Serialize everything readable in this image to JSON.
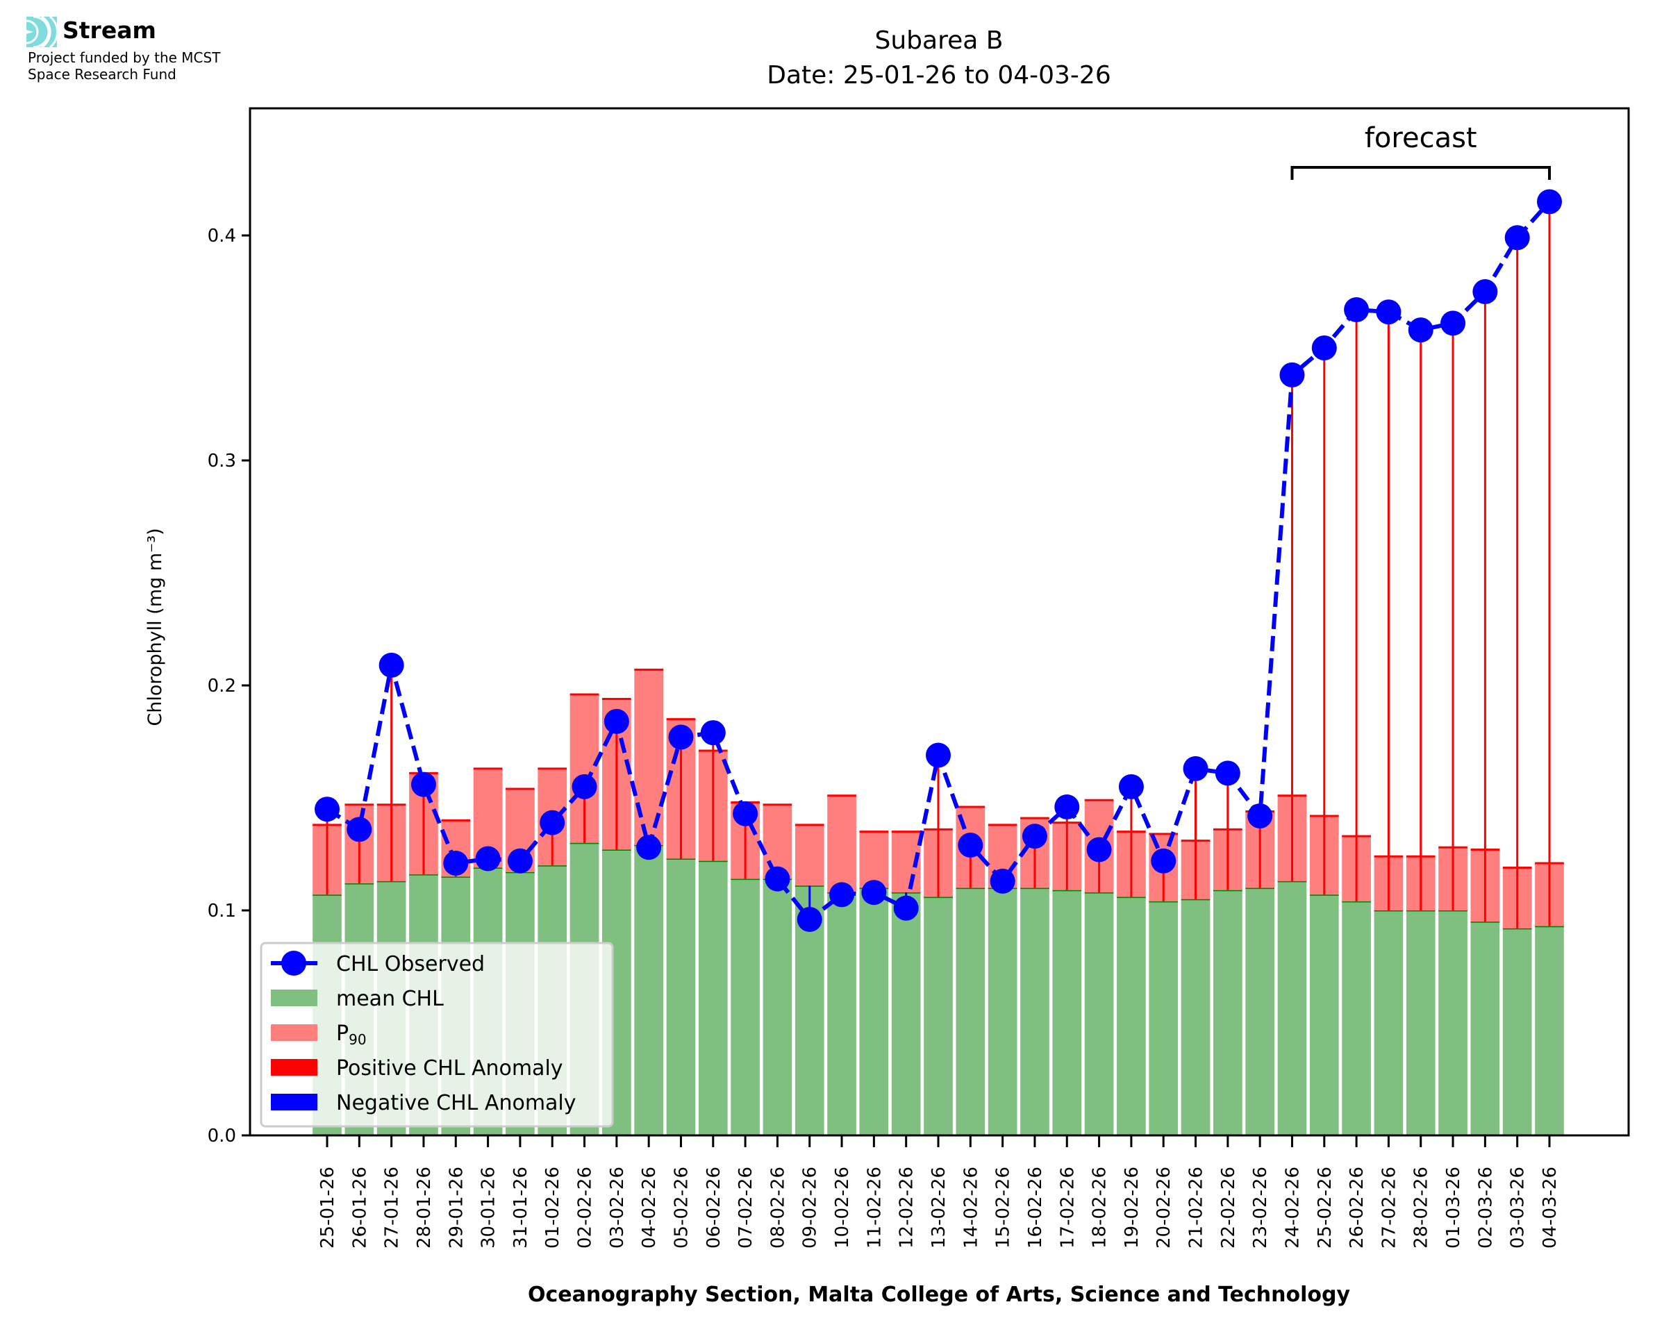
{
  "branding": {
    "name": "Stream",
    "funding_line1": "Project funded by the MCST",
    "funding_line2": "Space Research Fund",
    "logo_color": "#7fdcdc"
  },
  "chart_data": {
    "type": "bar",
    "title": "Subarea B",
    "subtitle": "Date: 25-01-26 to 04-03-26",
    "xlabel": "Oceanography Section, Malta College of Arts, Science and Technology",
    "ylabel": "Chlorophyll (mg m⁻³)",
    "ylim": [
      0,
      0.4565
    ],
    "yticks": [
      0.0,
      0.1,
      0.2,
      0.3,
      0.4
    ],
    "ytick_labels": [
      "0.0",
      "0.1",
      "0.2",
      "0.3",
      "0.4"
    ],
    "grid": false,
    "categories": [
      "25-01-26",
      "26-01-26",
      "27-01-26",
      "28-01-26",
      "29-01-26",
      "30-01-26",
      "31-01-26",
      "01-02-26",
      "02-02-26",
      "03-02-26",
      "04-02-26",
      "05-02-26",
      "06-02-26",
      "07-02-26",
      "08-02-26",
      "09-02-26",
      "10-02-26",
      "11-02-26",
      "12-02-26",
      "13-02-26",
      "14-02-26",
      "15-02-26",
      "16-02-26",
      "17-02-26",
      "18-02-26",
      "19-02-26",
      "20-02-26",
      "21-02-26",
      "22-02-26",
      "23-02-26",
      "24-02-26",
      "25-02-26",
      "26-02-26",
      "27-02-26",
      "28-02-26",
      "01-03-26",
      "02-03-26",
      "03-03-26",
      "04-03-26"
    ],
    "series": [
      {
        "name": "mean CHL",
        "kind": "bar",
        "color": "#7fbf7f",
        "edge_color": "#008000",
        "values": [
          0.107,
          0.112,
          0.113,
          0.116,
          0.115,
          0.119,
          0.117,
          0.12,
          0.13,
          0.127,
          0.129,
          0.123,
          0.122,
          0.114,
          0.114,
          0.111,
          0.108,
          0.11,
          0.108,
          0.106,
          0.11,
          0.11,
          0.11,
          0.109,
          0.108,
          0.106,
          0.104,
          0.105,
          0.109,
          0.11,
          0.113,
          0.107,
          0.104,
          0.1,
          0.1,
          0.1,
          0.095,
          0.092,
          0.093
        ]
      },
      {
        "name": "P90",
        "kind": "bar",
        "color": "#ff7f7f",
        "edge_color": "#ff0000",
        "values": [
          0.138,
          0.147,
          0.147,
          0.161,
          0.14,
          0.163,
          0.154,
          0.163,
          0.196,
          0.194,
          0.207,
          0.185,
          0.171,
          0.148,
          0.147,
          0.138,
          0.151,
          0.135,
          0.135,
          0.136,
          0.146,
          0.138,
          0.141,
          0.139,
          0.149,
          0.135,
          0.134,
          0.131,
          0.136,
          0.144,
          0.151,
          0.142,
          0.133,
          0.124,
          0.124,
          0.128,
          0.127,
          0.119,
          0.121
        ]
      },
      {
        "name": "CHL Observed",
        "kind": "line",
        "color": "#0000ff",
        "linestyle": "dashed",
        "marker": "circle",
        "values": [
          0.145,
          0.136,
          0.209,
          0.156,
          0.121,
          0.123,
          0.122,
          0.139,
          0.155,
          0.184,
          0.128,
          0.177,
          0.179,
          0.143,
          0.114,
          0.096,
          0.107,
          0.108,
          0.101,
          0.169,
          0.129,
          0.113,
          0.133,
          0.146,
          0.127,
          0.155,
          0.122,
          0.163,
          0.161,
          0.142,
          0.338,
          0.35,
          0.367,
          0.366,
          0.358,
          0.361,
          0.375,
          0.399,
          0.415
        ]
      }
    ],
    "anomaly_colors": {
      "positive": "#ff0000",
      "negative": "#0000ff"
    },
    "legend": {
      "placement": "lower-left",
      "entries": [
        {
          "label": "CHL Observed",
          "handle": "line-marker",
          "color": "#0000ff"
        },
        {
          "label": "mean CHL",
          "handle": "patch",
          "color": "#7fbf7f"
        },
        {
          "label": "P",
          "label_sub": "90",
          "handle": "patch",
          "color": "#ff7f7f"
        },
        {
          "label": "Positive CHL Anomaly",
          "handle": "patch",
          "color": "#ff0000"
        },
        {
          "label": "Negative CHL Anomaly",
          "handle": "patch",
          "color": "#0000ff"
        }
      ]
    },
    "annotations": [
      {
        "text": "forecast",
        "type": "bracket",
        "from_category": "24-02-26",
        "to_category": "04-03-26"
      }
    ]
  }
}
